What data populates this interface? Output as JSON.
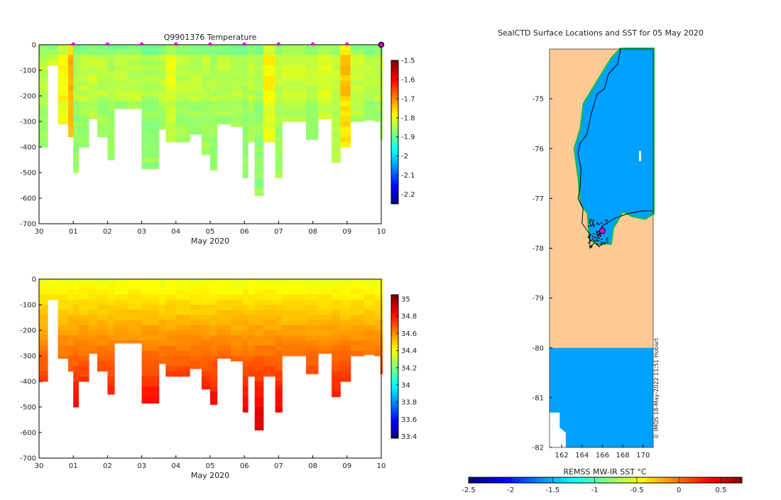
{
  "chart_data": [
    {
      "type": "heatmap",
      "title": "Q9901376  Temperature",
      "xlabel": "May 2020",
      "ylabel": "",
      "x_ticks": [
        "30",
        "01",
        "02",
        "03",
        "04",
        "05",
        "06",
        "07",
        "08",
        "09",
        "10"
      ],
      "x_range": [
        0,
        10
      ],
      "y_ticks": [
        0,
        -100,
        -200,
        -300,
        -400,
        -500,
        -600,
        -700
      ],
      "ylim": [
        -700,
        0
      ],
      "profile_markers_day": [
        1,
        2,
        3,
        4,
        5,
        6,
        7,
        8,
        9
      ],
      "colorbar": {
        "min": -2.25,
        "max": -1.5,
        "ticks": [
          -1.5,
          -1.6,
          -1.7,
          -1.8,
          -1.9,
          -2,
          -2.1,
          -2.2
        ]
      },
      "profiles": [
        {
          "day": 0.0,
          "max_depth": 400,
          "value": -1.83
        },
        {
          "day": 0.25,
          "max_depth": 80,
          "value": -1.82
        },
        {
          "day": 0.55,
          "max_depth": 310,
          "value": -1.78
        },
        {
          "day": 0.85,
          "max_depth": 360,
          "value": -1.72
        },
        {
          "day": 1.0,
          "max_depth": 500,
          "value": -1.84
        },
        {
          "day": 1.15,
          "max_depth": 400,
          "value": -1.83
        },
        {
          "day": 1.45,
          "max_depth": 290,
          "value": -1.82
        },
        {
          "day": 1.7,
          "max_depth": 360,
          "value": -1.83
        },
        {
          "day": 2.0,
          "max_depth": 450,
          "value": -1.84
        },
        {
          "day": 2.2,
          "max_depth": 250,
          "value": -1.83
        },
        {
          "day": 2.6,
          "max_depth": 250,
          "value": -1.83
        },
        {
          "day": 3.0,
          "max_depth": 485,
          "value": -1.84
        },
        {
          "day": 3.5,
          "max_depth": 330,
          "value": -1.83
        },
        {
          "day": 3.7,
          "max_depth": 380,
          "value": -1.8
        },
        {
          "day": 4.0,
          "max_depth": 380,
          "value": -1.83
        },
        {
          "day": 4.4,
          "max_depth": 350,
          "value": -1.83
        },
        {
          "day": 4.75,
          "max_depth": 430,
          "value": -1.83
        },
        {
          "day": 5.0,
          "max_depth": 490,
          "value": -1.84
        },
        {
          "day": 5.2,
          "max_depth": 310,
          "value": -1.83
        },
        {
          "day": 5.6,
          "max_depth": 320,
          "value": -1.83
        },
        {
          "day": 5.95,
          "max_depth": 520,
          "value": -1.84
        },
        {
          "day": 6.1,
          "max_depth": 380,
          "value": -1.83
        },
        {
          "day": 6.3,
          "max_depth": 590,
          "value": -1.84
        },
        {
          "day": 6.55,
          "max_depth": 380,
          "value": -1.78
        },
        {
          "day": 6.9,
          "max_depth": 520,
          "value": -1.83
        },
        {
          "day": 7.1,
          "max_depth": 300,
          "value": -1.82
        },
        {
          "day": 7.8,
          "max_depth": 370,
          "value": -1.83
        },
        {
          "day": 8.15,
          "max_depth": 290,
          "value": -1.8
        },
        {
          "day": 8.55,
          "max_depth": 460,
          "value": -1.82
        },
        {
          "day": 8.8,
          "max_depth": 400,
          "value": -1.74
        },
        {
          "day": 9.1,
          "max_depth": 300,
          "value": -1.82
        },
        {
          "day": 9.5,
          "max_depth": 295,
          "value": -1.83
        },
        {
          "day": 9.8,
          "max_depth": 300,
          "value": -1.83
        },
        {
          "day": 9.97,
          "max_depth": 370,
          "value": -1.83
        }
      ]
    },
    {
      "type": "heatmap",
      "title": "",
      "xlabel": "May 2020",
      "ylabel": "",
      "x_ticks": [
        "30",
        "01",
        "02",
        "03",
        "04",
        "05",
        "06",
        "07",
        "08",
        "09",
        "10"
      ],
      "x_range": [
        0,
        10
      ],
      "y_ticks": [
        0,
        -100,
        -200,
        -300,
        -400,
        -500,
        -600,
        -700
      ],
      "ylim": [
        -700,
        0
      ],
      "colorbar": {
        "min": 33.38,
        "max": 35.05,
        "ticks": [
          35,
          34.8,
          34.6,
          34.4,
          34.2,
          34,
          33.8,
          33.6,
          33.4
        ]
      },
      "profiles": "same profile depths as temperature panel; salinity increases with depth from 34.4 at surface to 34.9 at 600 m"
    },
    {
      "type": "heatmap",
      "title": "SealCTD Surface Locations and SST for 05 May 2020",
      "xlabel": "",
      "ylabel": "",
      "x_ticks": [
        162,
        164,
        166,
        168,
        170
      ],
      "x_range": [
        160.8,
        171.0
      ],
      "y_ticks": [
        -75,
        -76,
        -77,
        -78,
        -79,
        -80,
        -81,
        -82
      ],
      "ylim": [
        -82,
        -74.0
      ],
      "colorbar": {
        "label": "REMSS MW-IR SST °C",
        "min": -2.5,
        "max": 0.75,
        "ticks": [
          "-2.5",
          "-2",
          "-1.5",
          "-1",
          "-0.5",
          "0",
          "0.5"
        ]
      },
      "watermark": "© IMOS 18-May-2022 11:51 Hobart",
      "latest_location": {
        "lon": 166.0,
        "lat": -77.65
      }
    }
  ]
}
